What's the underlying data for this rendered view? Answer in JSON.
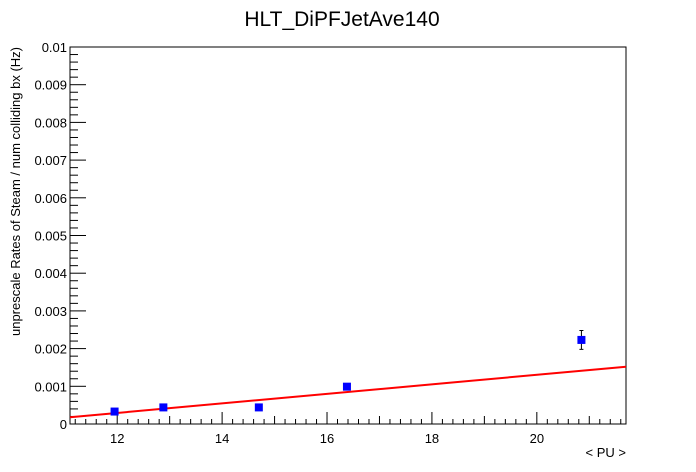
{
  "chart_data": {
    "type": "scatter",
    "title": "HLT_DiPFJetAve140",
    "xlabel": "< PU >",
    "ylabel": "unprescale Rates of Steam / num colliding bx (Hz)",
    "xlim": [
      11.1,
      21.7
    ],
    "ylim": [
      0,
      0.01
    ],
    "x_ticks": [
      "12",
      "14",
      "16",
      "18",
      "20"
    ],
    "y_ticks": [
      "0",
      "0.001",
      "0.002",
      "0.003",
      "0.004",
      "0.005",
      "0.006",
      "0.007",
      "0.008",
      "0.009",
      "0.01"
    ],
    "grid": false,
    "series": [
      {
        "points": [
          {
            "x": 11.95,
            "y": 0.00033,
            "err": 3e-05
          },
          {
            "x": 12.88,
            "y": 0.00044,
            "err": 3e-05
          },
          {
            "x": 14.7,
            "y": 0.00044,
            "err": 3e-05
          },
          {
            "x": 16.38,
            "y": 0.00099,
            "err": 5e-05
          },
          {
            "x": 20.85,
            "y": 0.00223,
            "err": 0.00025
          }
        ],
        "color": "#0000ff"
      }
    ],
    "fit": {
      "type": "linear",
      "x": [
        11.1,
        21.7
      ],
      "y": [
        0.00018,
        0.00152
      ],
      "color": "#ff0000"
    }
  }
}
